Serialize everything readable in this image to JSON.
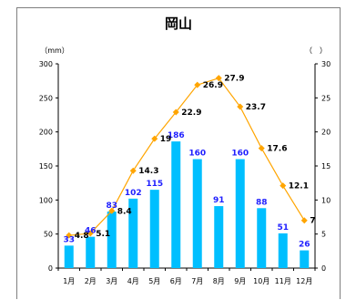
{
  "title": "岡山",
  "chart_data": {
    "type": "bar+line",
    "title": "岡山",
    "categories": [
      "1月",
      "2月",
      "3月",
      "4月",
      "5月",
      "6月",
      "7月",
      "8月",
      "9月",
      "10月",
      "11月",
      "12月"
    ],
    "series": [
      {
        "axis": "left",
        "type": "bar",
        "color": "#00bfff",
        "label_color": "#1f1fff",
        "values": [
          33,
          46,
          83,
          102,
          115,
          186,
          160,
          91,
          160,
          88,
          51,
          26
        ]
      },
      {
        "axis": "right",
        "type": "line",
        "color": "#ffa500",
        "label_color": "#000000",
        "values": [
          4.8,
          5.1,
          8.4,
          14.3,
          19,
          22.9,
          26.9,
          27.9,
          23.7,
          17.6,
          12.1,
          7
        ]
      }
    ],
    "left_axis": {
      "label": "（mm）",
      "min": 0,
      "max": 300,
      "ticks": [
        0,
        50,
        100,
        150,
        200,
        250,
        300
      ]
    },
    "right_axis": {
      "label": "（　）",
      "min": 0,
      "max": 30,
      "ticks": [
        0,
        5,
        10,
        15,
        20,
        25,
        30
      ]
    },
    "grid": false,
    "legend": "none"
  }
}
